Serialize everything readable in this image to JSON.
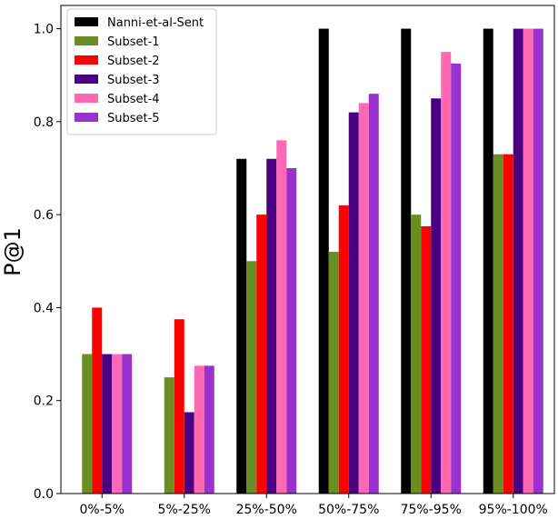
{
  "chart_data": {
    "type": "bar",
    "title": "",
    "xlabel": "",
    "ylabel": "P@1",
    "ylim": [
      0,
      1.05
    ],
    "yticks": [
      0.0,
      0.2,
      0.4,
      0.6,
      0.8,
      1.0
    ],
    "ytick_labels": [
      "0.0",
      "0.2",
      "0.4",
      "0.6",
      "0.8",
      "1.0"
    ],
    "grid": false,
    "legend_position": "top-left",
    "categories": [
      "0%-5%",
      "5%-25%",
      "25%-50%",
      "50%-75%",
      "75%-95%",
      "95%-100%"
    ],
    "series": [
      {
        "name": "Nanni-et-al-Sent",
        "color": "#000000",
        "values": [
          0.0,
          0.0,
          0.72,
          1.0,
          1.0,
          1.0
        ]
      },
      {
        "name": "Subset-1",
        "color": "#6b8e23",
        "values": [
          0.3,
          0.25,
          0.5,
          0.52,
          0.6,
          0.73
        ]
      },
      {
        "name": "Subset-2",
        "color": "#ff0000",
        "values": [
          0.4,
          0.375,
          0.6,
          0.62,
          0.575,
          0.73
        ]
      },
      {
        "name": "Subset-3",
        "color": "#4b0082",
        "values": [
          0.3,
          0.175,
          0.72,
          0.82,
          0.85,
          1.0
        ]
      },
      {
        "name": "Subset-4",
        "color": "#ff69b4",
        "values": [
          0.3,
          0.275,
          0.76,
          0.84,
          0.95,
          1.0
        ]
      },
      {
        "name": "Subset-5",
        "color": "#9932cc",
        "values": [
          0.3,
          0.275,
          0.7,
          0.86,
          0.925,
          1.0
        ]
      }
    ]
  }
}
